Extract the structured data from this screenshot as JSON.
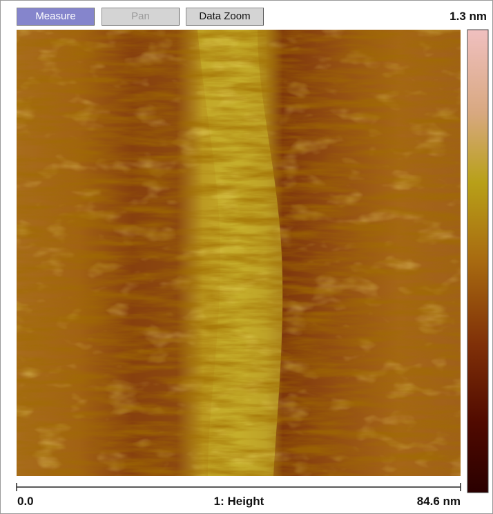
{
  "toolbar": {
    "buttons": [
      "Measure",
      "Pan",
      "Data Zoom"
    ]
  },
  "colorbar": {
    "max_label": "1.3 nm"
  },
  "scale": {
    "start_label": "0.0",
    "channel_label": "1: Height",
    "end_label": "84.6 nm"
  }
}
